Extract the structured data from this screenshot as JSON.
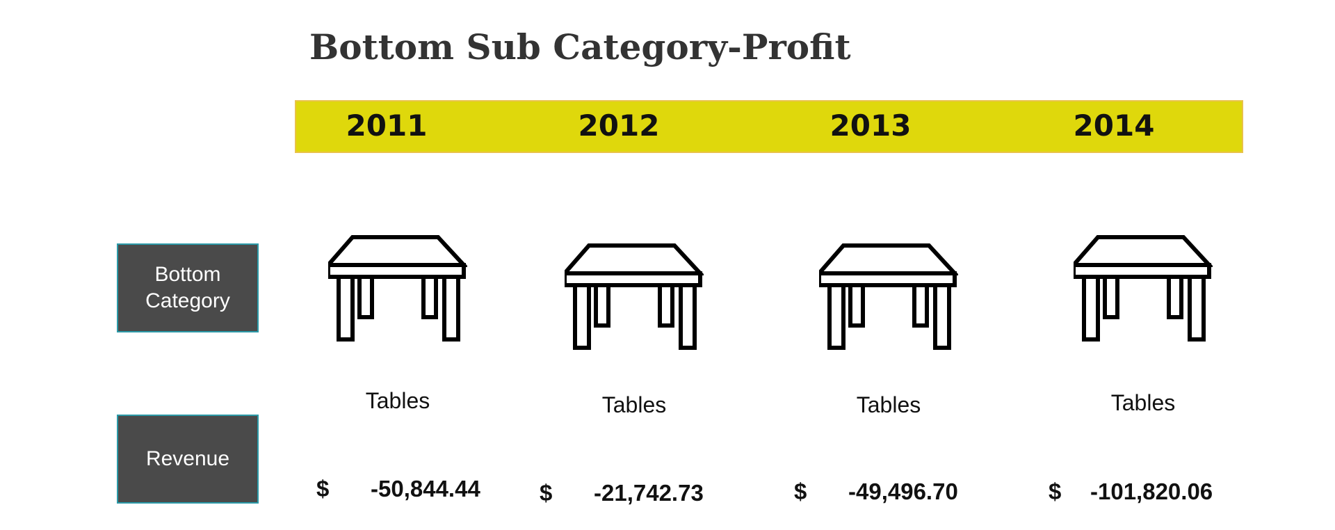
{
  "title": "Bottom Sub Category-Profit",
  "years": [
    "2011",
    "2012",
    "2013",
    "2014"
  ],
  "labels": {
    "bottom_category": [
      "Bottom",
      "Category"
    ],
    "revenue": "Revenue"
  },
  "columns": [
    {
      "year": "2011",
      "category": "Tables",
      "currency": "$",
      "amount": "-50,844.44",
      "icon": "table-icon"
    },
    {
      "year": "2012",
      "category": "Tables",
      "currency": "$",
      "amount": "-21,742.73",
      "icon": "table-icon"
    },
    {
      "year": "2013",
      "category": "Tables",
      "currency": "$",
      "amount": "-49,496.70",
      "icon": "table-icon"
    },
    {
      "year": "2014",
      "category": "Tables",
      "currency": "$",
      "amount": "-101,820.06",
      "icon": "table-icon"
    }
  ],
  "colors": {
    "year_band": "#dfd80c",
    "side_box": "#4a4a4a",
    "side_box_border": "#2b9aa8"
  }
}
